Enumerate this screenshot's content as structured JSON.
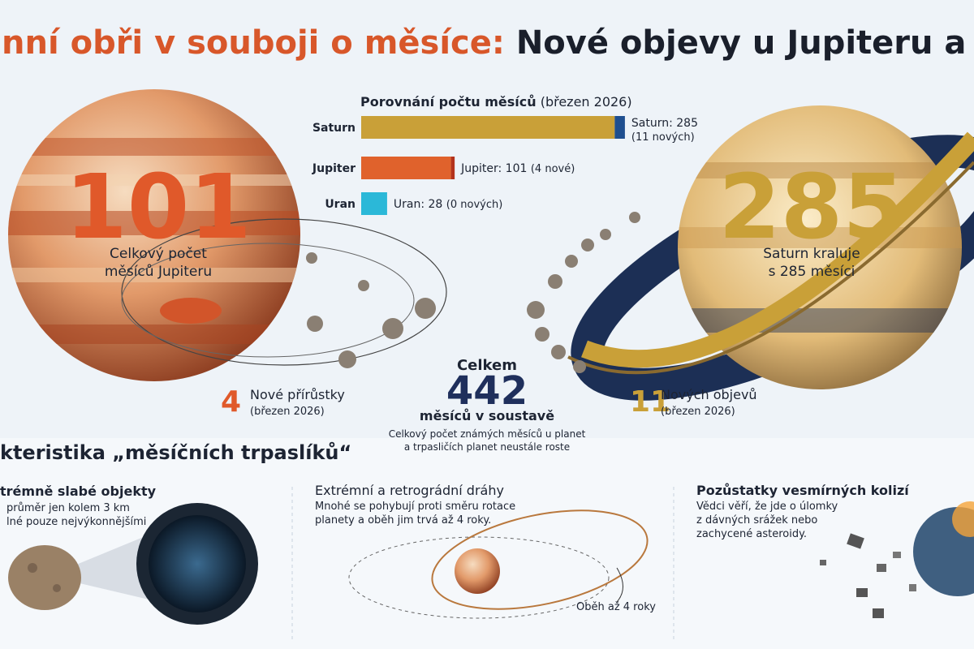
{
  "header": {
    "title_part1": "nní obři v souboji o měsíce:",
    "title_part2": "Nové objevy u Jupiteru a Satur"
  },
  "chart_data": {
    "type": "bar",
    "orientation": "horizontal",
    "stacked": true,
    "title": "Porovnání počtu měsíců",
    "subtitle": "(březen 2026)",
    "categories": [
      "Saturn",
      "Jupiter",
      "Uran"
    ],
    "series": [
      {
        "values": [
          274,
          97,
          28
        ],
        "colors": [
          "#c9a038",
          "#e0622c",
          "#2bb8d8"
        ]
      },
      {
        "values": [
          11,
          4,
          0
        ],
        "colors": [
          "#1f4f8f",
          "#b3321c",
          "#1f9fbd"
        ]
      }
    ],
    "xlim": [
      0,
      300
    ],
    "bar_labels": [
      {
        "total": "Saturn: 285",
        "note": "(11 nových)"
      },
      {
        "total": "Jupiter: 101",
        "note": "(4 nové)"
      },
      {
        "total": "Uran: 28",
        "note": "(0 nových)"
      }
    ]
  },
  "jupiter": {
    "count": 101,
    "caption": [
      "Celkový počet",
      "měsíců Jupiteru"
    ],
    "new_count": 4,
    "new_label": "Nové přírůstky",
    "new_date": "(březen 2026)"
  },
  "saturn": {
    "count": 285,
    "caption": [
      "Saturn kraluje",
      "s 285 měsíci"
    ],
    "new_count": 11,
    "new_label": "Nových objevů",
    "new_date": "(březen 2026)"
  },
  "total": {
    "label": "Celkem",
    "count": 442,
    "unit": "měsíců v soustavě",
    "note": [
      "Celkový počet známých měsíců u planet",
      "a trpasličích planet neustále roste"
    ]
  },
  "features": {
    "heading": "kteristika „měsíčních trpaslíků“",
    "cards": [
      {
        "title": "trémně slabé objekty",
        "text": [
          "průměr jen kolem 3 km",
          "lné pouze nejvýkonnějšími"
        ]
      },
      {
        "title": "Extrémní a retrográdní dráhy",
        "text": [
          "Mnohé se pohybují proti směru rotace",
          "planety a oběh jim trvá až 4 roky."
        ],
        "annotation": "Oběh až 4 roky"
      },
      {
        "title": "Pozůstatky vesmírných kolizí",
        "text": [
          "Vědci věří, že jde o úlomky",
          "z dávných srážek nebo",
          "zachycené asteroidy."
        ]
      }
    ]
  }
}
